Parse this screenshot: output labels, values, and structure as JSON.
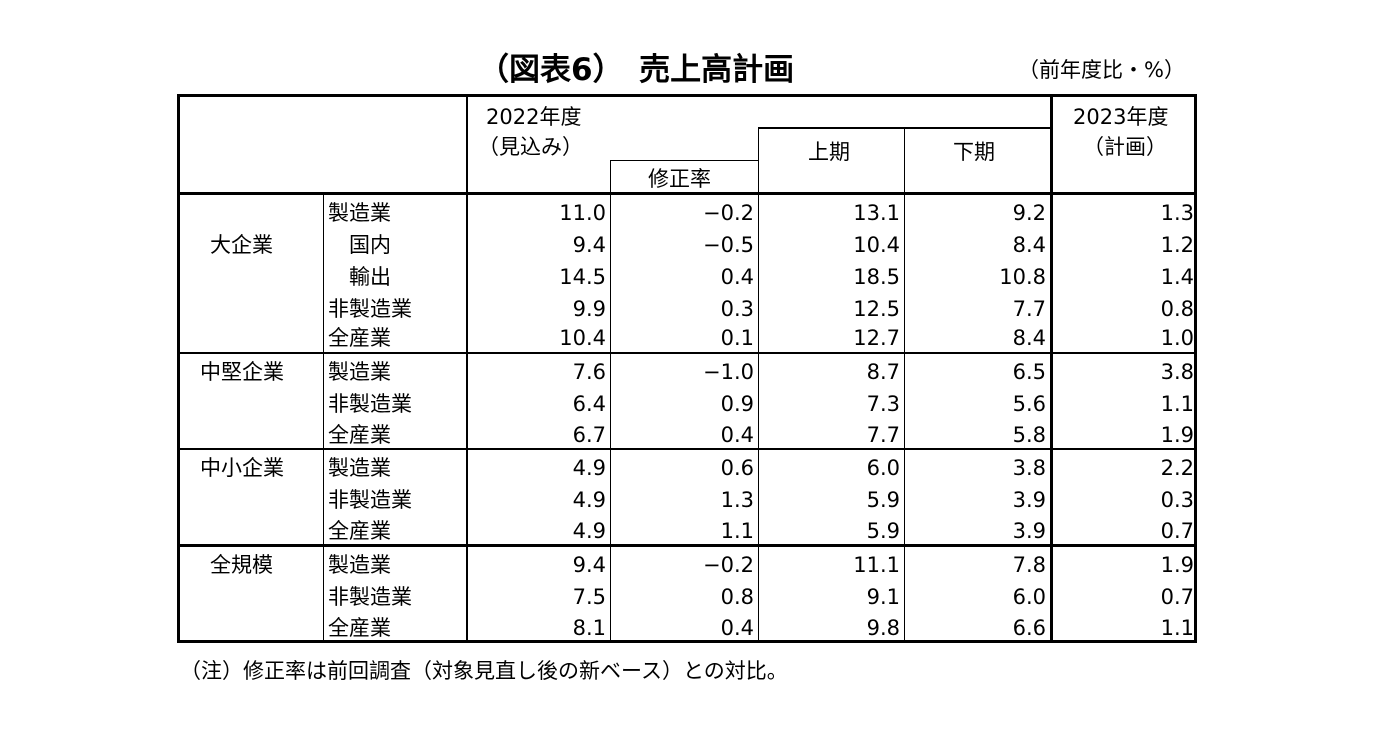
{
  "title": "（図表6）　売上高計画",
  "unit": "（前年度比・%）",
  "header": {
    "fy2022_line1": "2022年度",
    "fy2022_line2": "（見込み）",
    "revision": "修正率",
    "first_half": "上期",
    "second_half": "下期",
    "fy2023_line1": "2023年度",
    "fy2023_line2": "（計画）"
  },
  "groups": [
    {
      "name": "大企業",
      "rows": [
        {
          "sector": "製造業",
          "fy2022": "11.0",
          "revision": "−0.2",
          "h1": "13.1",
          "h2": "9.2",
          "fy2023": "1.3"
        },
        {
          "sector": "　国内",
          "fy2022": "9.4",
          "revision": "−0.5",
          "h1": "10.4",
          "h2": "8.4",
          "fy2023": "1.2"
        },
        {
          "sector": "　輸出",
          "fy2022": "14.5",
          "revision": "0.4",
          "h1": "18.5",
          "h2": "10.8",
          "fy2023": "1.4"
        },
        {
          "sector": "非製造業",
          "fy2022": "9.9",
          "revision": "0.3",
          "h1": "12.5",
          "h2": "7.7",
          "fy2023": "0.8"
        },
        {
          "sector": "全産業",
          "fy2022": "10.4",
          "revision": "0.1",
          "h1": "12.7",
          "h2": "8.4",
          "fy2023": "1.0"
        }
      ]
    },
    {
      "name": "中堅企業",
      "rows": [
        {
          "sector": "製造業",
          "fy2022": "7.6",
          "revision": "−1.0",
          "h1": "8.7",
          "h2": "6.5",
          "fy2023": "3.8"
        },
        {
          "sector": "非製造業",
          "fy2022": "6.4",
          "revision": "0.9",
          "h1": "7.3",
          "h2": "5.6",
          "fy2023": "1.1"
        },
        {
          "sector": "全産業",
          "fy2022": "6.7",
          "revision": "0.4",
          "h1": "7.7",
          "h2": "5.8",
          "fy2023": "1.9"
        }
      ]
    },
    {
      "name": "中小企業",
      "rows": [
        {
          "sector": "製造業",
          "fy2022": "4.9",
          "revision": "0.6",
          "h1": "6.0",
          "h2": "3.8",
          "fy2023": "2.2"
        },
        {
          "sector": "非製造業",
          "fy2022": "4.9",
          "revision": "1.3",
          "h1": "5.9",
          "h2": "3.9",
          "fy2023": "0.3"
        },
        {
          "sector": "全産業",
          "fy2022": "4.9",
          "revision": "1.1",
          "h1": "5.9",
          "h2": "3.9",
          "fy2023": "0.7"
        }
      ]
    },
    {
      "name": "全規模",
      "rows": [
        {
          "sector": "製造業",
          "fy2022": "9.4",
          "revision": "−0.2",
          "h1": "11.1",
          "h2": "7.8",
          "fy2023": "1.9"
        },
        {
          "sector": "非製造業",
          "fy2022": "7.5",
          "revision": "0.8",
          "h1": "9.1",
          "h2": "6.0",
          "fy2023": "0.7"
        },
        {
          "sector": "全産業",
          "fy2022": "8.1",
          "revision": "0.4",
          "h1": "9.8",
          "h2": "6.6",
          "fy2023": "1.1"
        }
      ]
    }
  ],
  "note": "（注）修正率は前回調査（対象見直し後の新ベース）との対比。"
}
